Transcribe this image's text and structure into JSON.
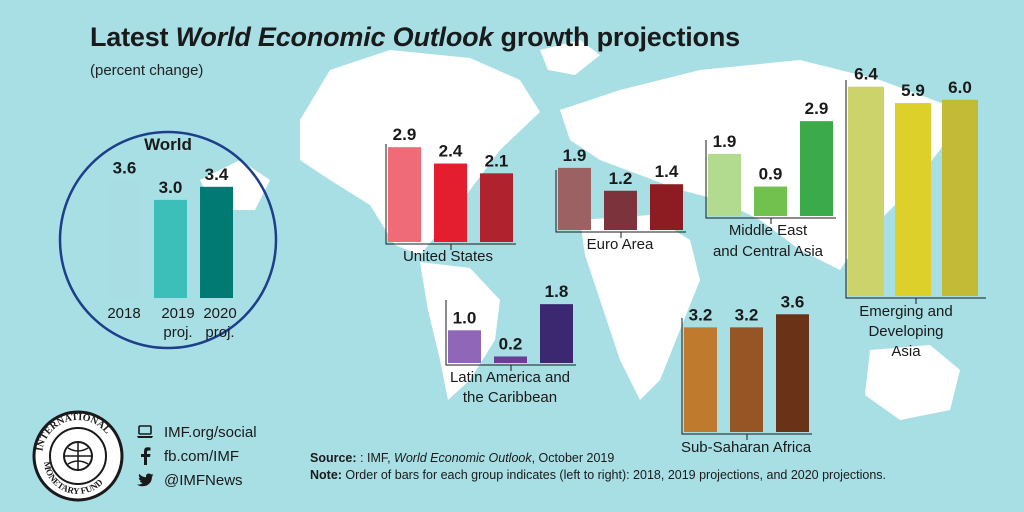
{
  "title": {
    "prefix": "Latest ",
    "emphasis": "World Economic Outlook",
    "suffix": " growth projections"
  },
  "subtitle": "(percent change)",
  "social": {
    "website": "IMF.org/social",
    "facebook": "fb.com/IMF",
    "twitter": "@IMFNews"
  },
  "source": {
    "label": "Source:",
    "text_prefix": " : IMF, ",
    "text_emphasis": "World Economic Outlook",
    "text_suffix": ", October 2019"
  },
  "note": {
    "label": "Note:",
    "text": " Order of bars for each group indicates (left to right): 2018, 2019 projections, and 2020 projections."
  },
  "logo_text": "INTERNATIONAL MONETARY FUND",
  "colors": {
    "background": "#a7dfe5",
    "land": "#ffffff",
    "world_circle": "#1d3e8a"
  },
  "chart_data": [
    {
      "type": "bar",
      "group": "World",
      "categories": [
        "2018",
        "2019 proj.",
        "2020 proj."
      ],
      "values": [
        3.6,
        3.0,
        3.4
      ],
      "labels": [
        "3.6",
        "3.0",
        "3.4"
      ],
      "colors": [
        "#a8dde3",
        "#3bbfb8",
        "#007a72"
      ]
    },
    {
      "type": "bar",
      "group": "United States",
      "categories": [
        "2018",
        "2019 proj.",
        "2020 proj."
      ],
      "values": [
        2.9,
        2.4,
        2.1
      ],
      "labels": [
        "2.9",
        "2.4",
        "2.1"
      ],
      "colors": [
        "#f06b78",
        "#e41e2e",
        "#b0222e"
      ]
    },
    {
      "type": "bar",
      "group": "Euro Area",
      "categories": [
        "2018",
        "2019 proj.",
        "2020 proj."
      ],
      "values": [
        1.9,
        1.2,
        1.4
      ],
      "labels": [
        "1.9",
        "1.2",
        "1.4"
      ],
      "colors": [
        "#9c6163",
        "#7c333b",
        "#8c1c22"
      ]
    },
    {
      "type": "bar",
      "group": "Middle East and Central Asia",
      "categories": [
        "2018",
        "2019 proj.",
        "2020 proj."
      ],
      "values": [
        1.9,
        0.9,
        2.9
      ],
      "labels": [
        "1.9",
        "0.9",
        "2.9"
      ],
      "colors": [
        "#b3db8f",
        "#72c04e",
        "#3aaa4a"
      ]
    },
    {
      "type": "bar",
      "group": "Emerging and Developing Asia",
      "categories": [
        "2018",
        "2019 proj.",
        "2020 proj."
      ],
      "values": [
        6.4,
        5.9,
        6.0
      ],
      "labels": [
        "6.4",
        "5.9",
        "6.0"
      ],
      "colors": [
        "#ccd36a",
        "#ddd02a",
        "#c3bb36"
      ]
    },
    {
      "type": "bar",
      "group": "Latin America and the Caribbean",
      "categories": [
        "2018",
        "2019 proj.",
        "2020 proj."
      ],
      "values": [
        1.0,
        0.2,
        1.8
      ],
      "labels": [
        "1.0",
        "0.2",
        "1.8"
      ],
      "colors": [
        "#9067b8",
        "#6c3d98",
        "#3b2870"
      ]
    },
    {
      "type": "bar",
      "group": "Sub-Saharan Africa",
      "categories": [
        "2018",
        "2019 proj.",
        "2020 proj."
      ],
      "values": [
        3.2,
        3.2,
        3.6
      ],
      "labels": [
        "3.2",
        "3.2",
        "3.6"
      ],
      "colors": [
        "#c07a2e",
        "#965525",
        "#6a3317"
      ]
    }
  ]
}
